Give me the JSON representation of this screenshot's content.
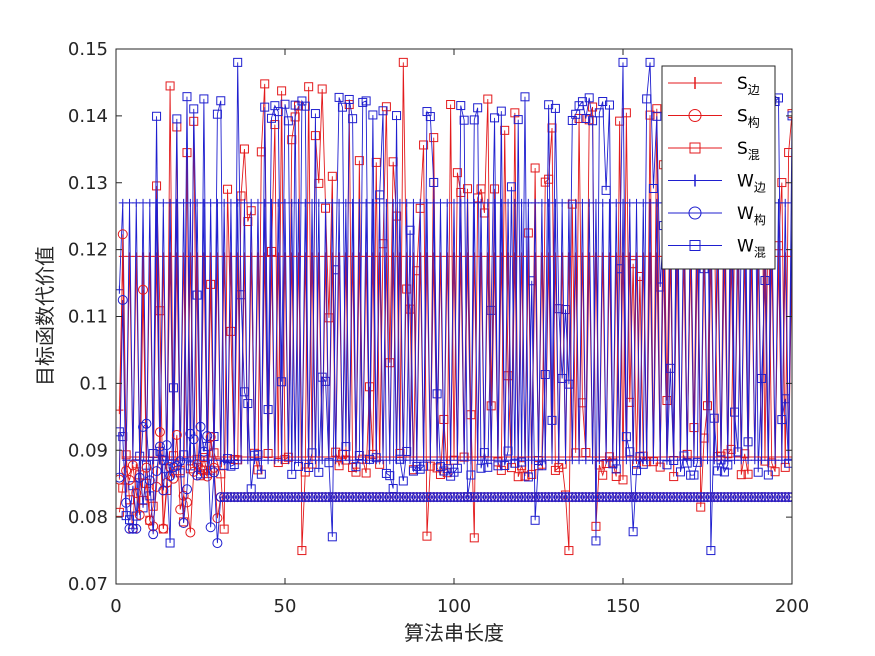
{
  "chart_data": {
    "type": "line",
    "title": "",
    "xlabel": "算法串长度",
    "ylabel": "目标函数代价值",
    "xlim": [
      0,
      200
    ],
    "ylim": [
      0.07,
      0.15
    ],
    "xticks": [
      "0",
      "50",
      "100",
      "150",
      "200"
    ],
    "yticks": [
      "0.07",
      "0.08",
      "0.09",
      "0.1",
      "0.11",
      "0.12",
      "0.13",
      "0.14",
      "0.15"
    ],
    "grid": false,
    "legend_position": "top-right",
    "colors": {
      "red": "#e31a1c",
      "blue": "#1f1fcf",
      "axis": "#262626"
    },
    "series": [
      {
        "key": "s_bian",
        "name": "S边",
        "name_main": "S",
        "name_sub": "边",
        "color": "#e31a1c",
        "marker": "plus",
        "note": "dense oscillation between ~0.089 and ~0.127"
      },
      {
        "key": "s_gou",
        "name": "S构",
        "name_main": "S",
        "name_sub": "构",
        "color": "#e31a1c",
        "marker": "circle"
      },
      {
        "key": "s_hun",
        "name": "S混",
        "name_main": "S",
        "name_sub": "混",
        "color": "#e31a1c",
        "marker": "square"
      },
      {
        "key": "w_bian",
        "name": "W边",
        "name_main": "W",
        "name_sub": "边",
        "color": "#1f1fcf",
        "marker": "plus"
      },
      {
        "key": "w_gou",
        "name": "W构",
        "name_main": "W",
        "name_sub": "构",
        "color": "#1f1fcf",
        "marker": "circle"
      },
      {
        "key": "w_hun",
        "name": "W混",
        "name_main": "W",
        "name_sub": "混",
        "color": "#1f1fcf",
        "marker": "square"
      }
    ],
    "approximate_levels": {
      "s_bian_high": 0.119,
      "s_bian_low": 0.089,
      "w_bian_high": 0.127,
      "w_bian_low": 0.0885,
      "gou_plateau": 0.083,
      "hun_upper_band": 0.141,
      "hun_lower_band": 0.088
    }
  }
}
